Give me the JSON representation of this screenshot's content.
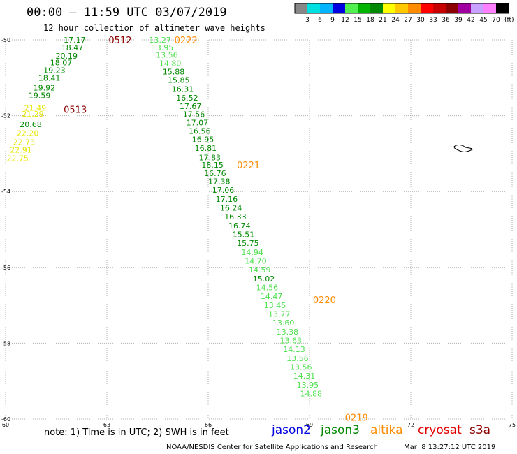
{
  "header": {
    "title": "00:00 – 11:59 UTC 03/07/2019",
    "subtitle": "12 hour collection of altimeter wave heights"
  },
  "colorbar": {
    "colors": [
      "#888888",
      "#00e0e0",
      "#00b4ff",
      "#0000e0",
      "#50f050",
      "#00b400",
      "#008800",
      "#ffff00",
      "#ffc800",
      "#ff8c00",
      "#ff0000",
      "#c80000",
      "#8c0000",
      "#a000a0",
      "#c8a0ff",
      "#ff80ff",
      "#000000"
    ],
    "labels": [
      "3",
      "6",
      "9",
      "12",
      "15",
      "18",
      "21",
      "24",
      "27",
      "30",
      "33",
      "36",
      "39",
      "42",
      "45",
      "70"
    ],
    "unit": "(ft)"
  },
  "chart_data": {
    "type": "scatter",
    "title": "00:00 – 11:59 UTC 03/07/2019",
    "subtitle": "12 hour collection of altimeter wave heights",
    "xlim": [
      60,
      75
    ],
    "ylim": [
      -60,
      -50
    ],
    "xticks": [
      60,
      63,
      66,
      69,
      72,
      75
    ],
    "yticks": [
      -50,
      -52,
      -54,
      -56,
      -58,
      -60
    ],
    "grid": true,
    "satellites": [
      {
        "name": "jason2",
        "color": "#0000e0"
      },
      {
        "name": "jason3",
        "color": "#008800"
      },
      {
        "name": "altika",
        "color": "#ff8c00"
      },
      {
        "name": "cryosat",
        "color": "#e00000"
      },
      {
        "name": "s3a",
        "color": "#8c0000"
      }
    ],
    "time_labels": [
      {
        "text": "0512",
        "x": 63.05,
        "y": -50.0,
        "color": "#8c0000"
      },
      {
        "text": "0513",
        "x": 61.72,
        "y": -51.83,
        "color": "#8c0000"
      },
      {
        "text": "0222",
        "x": 65.0,
        "y": -50.0,
        "color": "#ff8c00"
      },
      {
        "text": "0221",
        "x": 66.85,
        "y": -53.3,
        "color": "#ff8c00"
      },
      {
        "text": "0220",
        "x": 69.1,
        "y": -56.85,
        "color": "#ff8c00"
      },
      {
        "text": "0219",
        "x": 70.05,
        "y": -59.95,
        "color": "#ff8c00"
      }
    ],
    "series": [
      {
        "name": "s3a",
        "points": [
          {
            "x": 61.72,
            "y": -50.0,
            "v": "17.17",
            "c": "#008800"
          },
          {
            "x": 61.65,
            "y": -50.2,
            "v": "18.47",
            "c": "#008800"
          },
          {
            "x": 61.48,
            "y": -50.42,
            "v": "20.19",
            "c": "#008800"
          },
          {
            "x": 61.32,
            "y": -50.6,
            "v": "18.07",
            "c": "#008800"
          },
          {
            "x": 61.12,
            "y": -50.8,
            "v": "19.23",
            "c": "#008800"
          },
          {
            "x": 60.97,
            "y": -51.0,
            "v": "18.41",
            "c": "#008800"
          },
          {
            "x": 60.82,
            "y": -51.26,
            "v": "19.92",
            "c": "#008800"
          },
          {
            "x": 60.68,
            "y": -51.46,
            "v": "19.59",
            "c": "#008800"
          },
          {
            "x": 60.55,
            "y": -51.8,
            "v": "21.49",
            "c": "#e6e600"
          },
          {
            "x": 60.48,
            "y": -51.95,
            "v": "21.29",
            "c": "#e6e600"
          },
          {
            "x": 60.42,
            "y": -52.23,
            "v": "20.68",
            "c": "#008800"
          },
          {
            "x": 60.33,
            "y": -52.46,
            "v": "22.20",
            "c": "#e6e600"
          },
          {
            "x": 60.22,
            "y": -52.7,
            "v": "22.73",
            "c": "#e6e600"
          },
          {
            "x": 60.13,
            "y": -52.9,
            "v": "22.91",
            "c": "#e6e600"
          },
          {
            "x": 60.03,
            "y": -53.12,
            "v": "22.75",
            "c": "#e6e600"
          }
        ]
      },
      {
        "name": "altika",
        "points": [
          {
            "x": 64.25,
            "y": -50.0,
            "v": "13.27",
            "c": "#50e050"
          },
          {
            "x": 64.32,
            "y": -50.2,
            "v": "13.95",
            "c": "#50e050"
          },
          {
            "x": 64.45,
            "y": -50.4,
            "v": "13.56",
            "c": "#50e050"
          },
          {
            "x": 64.55,
            "y": -50.62,
            "v": "14.80",
            "c": "#50e050"
          },
          {
            "x": 64.65,
            "y": -50.84,
            "v": "15.88",
            "c": "#008800"
          },
          {
            "x": 64.8,
            "y": -51.06,
            "v": "15.85",
            "c": "#008800"
          },
          {
            "x": 64.92,
            "y": -51.3,
            "v": "16.31",
            "c": "#008800"
          },
          {
            "x": 65.05,
            "y": -51.53,
            "v": "16.52",
            "c": "#008800"
          },
          {
            "x": 65.15,
            "y": -51.75,
            "v": "17.67",
            "c": "#008800"
          },
          {
            "x": 65.25,
            "y": -51.96,
            "v": "17.56",
            "c": "#008800"
          },
          {
            "x": 65.35,
            "y": -52.18,
            "v": "17.07",
            "c": "#008800"
          },
          {
            "x": 65.42,
            "y": -52.4,
            "v": "16.56",
            "c": "#008800"
          },
          {
            "x": 65.52,
            "y": -52.62,
            "v": "16.95",
            "c": "#008800"
          },
          {
            "x": 65.6,
            "y": -52.85,
            "v": "16.81",
            "c": "#008800"
          },
          {
            "x": 65.72,
            "y": -53.1,
            "v": "17.83",
            "c": "#008800"
          },
          {
            "x": 65.8,
            "y": -53.3,
            "v": "18.15",
            "c": "#008800"
          },
          {
            "x": 65.88,
            "y": -53.52,
            "v": "16.76",
            "c": "#008800"
          },
          {
            "x": 66.0,
            "y": -53.73,
            "v": "17.38",
            "c": "#008800"
          },
          {
            "x": 66.12,
            "y": -53.96,
            "v": "17.06",
            "c": "#008800"
          },
          {
            "x": 66.22,
            "y": -54.2,
            "v": "17.16",
            "c": "#008800"
          },
          {
            "x": 66.35,
            "y": -54.43,
            "v": "16.24",
            "c": "#008800"
          },
          {
            "x": 66.48,
            "y": -54.66,
            "v": "16.33",
            "c": "#008800"
          },
          {
            "x": 66.6,
            "y": -54.9,
            "v": "16.74",
            "c": "#008800"
          },
          {
            "x": 66.72,
            "y": -55.13,
            "v": "15.51",
            "c": "#008800"
          },
          {
            "x": 66.85,
            "y": -55.36,
            "v": "15.75",
            "c": "#008800"
          },
          {
            "x": 66.98,
            "y": -55.6,
            "v": "14.94",
            "c": "#50e050"
          },
          {
            "x": 67.08,
            "y": -55.83,
            "v": "14.70",
            "c": "#50e050"
          },
          {
            "x": 67.2,
            "y": -56.06,
            "v": "14.59",
            "c": "#50e050"
          },
          {
            "x": 67.32,
            "y": -56.3,
            "v": "15.02",
            "c": "#008800"
          },
          {
            "x": 67.42,
            "y": -56.53,
            "v": "14.56",
            "c": "#50e050"
          },
          {
            "x": 67.55,
            "y": -56.76,
            "v": "14.47",
            "c": "#50e050"
          },
          {
            "x": 67.65,
            "y": -57.0,
            "v": "13.45",
            "c": "#50e050"
          },
          {
            "x": 67.78,
            "y": -57.23,
            "v": "13.77",
            "c": "#50e050"
          },
          {
            "x": 67.9,
            "y": -57.46,
            "v": "13.60",
            "c": "#50e050"
          },
          {
            "x": 68.02,
            "y": -57.7,
            "v": "13.38",
            "c": "#50e050"
          },
          {
            "x": 68.12,
            "y": -57.93,
            "v": "13.63",
            "c": "#50e050"
          },
          {
            "x": 68.22,
            "y": -58.16,
            "v": "14.13",
            "c": "#50e050"
          },
          {
            "x": 68.32,
            "y": -58.4,
            "v": "13.56",
            "c": "#50e050"
          },
          {
            "x": 68.42,
            "y": -58.63,
            "v": "13.56",
            "c": "#50e050"
          },
          {
            "x": 68.52,
            "y": -58.86,
            "v": "14.31",
            "c": "#50e050"
          },
          {
            "x": 68.62,
            "y": -59.1,
            "v": "13.95",
            "c": "#50e050"
          },
          {
            "x": 68.72,
            "y": -59.33,
            "v": "14.88",
            "c": "#50e050"
          }
        ]
      }
    ]
  },
  "footer": {
    "note": "note: 1) Time is in UTC; 2) SWH is in feet",
    "credit": "NOAA/NESDIS Center for Satellite Applications and Research",
    "timestamp": "Mar  8 13:27:12 UTC 2019"
  }
}
